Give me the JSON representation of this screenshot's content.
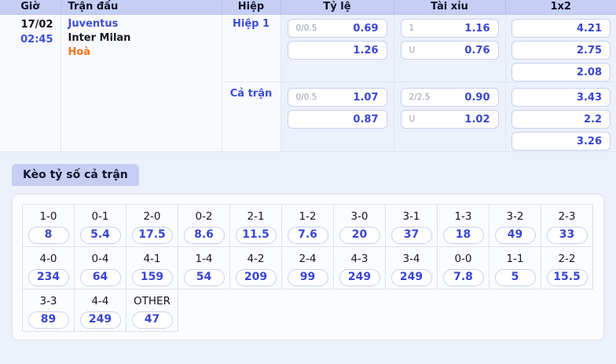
{
  "colors": {
    "accent_blue": "#3946d2",
    "link_blue": "#3d4ed8",
    "draw_orange": "#f97316",
    "header_bg": "#c7cef4",
    "page_bg": "#edf1fb"
  },
  "odds_table": {
    "headers": {
      "time": "Giờ",
      "match": "Trận đấu",
      "period": "Hiệp",
      "handicap": "Tỷ lệ",
      "over_under": "Tài xỉu",
      "one_x_two": "1x2"
    },
    "match": {
      "date": "17/02",
      "kickoff": "02:45",
      "home": "Juventus",
      "away": "Inter Milan",
      "draw": "Hoà"
    },
    "sections": [
      {
        "period": "Hiệp 1",
        "handicap": [
          {
            "label": "0/0.5",
            "value": "0.69"
          },
          {
            "label": "",
            "value": "1.26"
          }
        ],
        "over_under": [
          {
            "label": "1",
            "value": "1.16"
          },
          {
            "label": "U",
            "value": "0.76"
          }
        ],
        "one_x_two": [
          {
            "value": "4.21"
          },
          {
            "value": "2.75"
          },
          {
            "value": "2.08"
          }
        ]
      },
      {
        "period": "Cả trận",
        "handicap": [
          {
            "label": "0/0.5",
            "value": "1.07"
          },
          {
            "label": "",
            "value": "0.87"
          }
        ],
        "over_under": [
          {
            "label": "2/2.5",
            "value": "0.90"
          },
          {
            "label": "U",
            "value": "1.02"
          }
        ],
        "one_x_two": [
          {
            "value": "3.43"
          },
          {
            "value": "2.2"
          },
          {
            "value": "3.26"
          }
        ]
      }
    ]
  },
  "score_section": {
    "tab_label": "Kèo tỷ số cả trận",
    "columns": 11,
    "rows": [
      [
        {
          "score": "1-0",
          "odds": "8"
        },
        {
          "score": "0-1",
          "odds": "5.4"
        },
        {
          "score": "2-0",
          "odds": "17.5"
        },
        {
          "score": "0-2",
          "odds": "8.6"
        },
        {
          "score": "2-1",
          "odds": "11.5"
        },
        {
          "score": "1-2",
          "odds": "7.6"
        },
        {
          "score": "3-0",
          "odds": "20"
        },
        {
          "score": "3-1",
          "odds": "37"
        },
        {
          "score": "1-3",
          "odds": "18"
        },
        {
          "score": "3-2",
          "odds": "49"
        },
        {
          "score": "2-3",
          "odds": "33"
        }
      ],
      [
        {
          "score": "4-0",
          "odds": "234"
        },
        {
          "score": "0-4",
          "odds": "64"
        },
        {
          "score": "4-1",
          "odds": "159"
        },
        {
          "score": "1-4",
          "odds": "54"
        },
        {
          "score": "4-2",
          "odds": "209"
        },
        {
          "score": "2-4",
          "odds": "99"
        },
        {
          "score": "4-3",
          "odds": "249"
        },
        {
          "score": "3-4",
          "odds": "249"
        },
        {
          "score": "0-0",
          "odds": "7.8"
        },
        {
          "score": "1-1",
          "odds": "5"
        },
        {
          "score": "2-2",
          "odds": "15.5"
        }
      ],
      [
        {
          "score": "3-3",
          "odds": "89"
        },
        {
          "score": "4-4",
          "odds": "249"
        },
        {
          "score": "OTHER",
          "odds": "47"
        }
      ]
    ]
  }
}
